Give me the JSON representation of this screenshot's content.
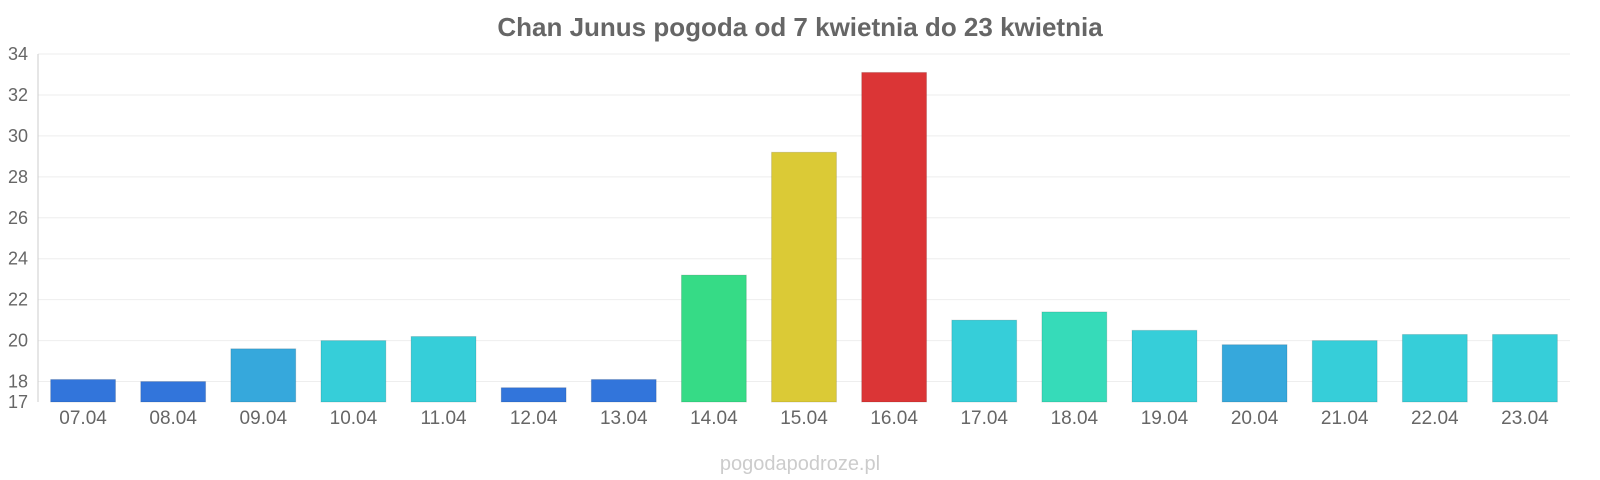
{
  "chart_data": {
    "type": "bar",
    "title": "Chan Junus pogoda od 7 kwietnia do 23 kwietnia",
    "categories": [
      "07.04",
      "08.04",
      "09.04",
      "10.04",
      "11.04",
      "12.04",
      "13.04",
      "14.04",
      "15.04",
      "16.04",
      "17.04",
      "18.04",
      "19.04",
      "20.04",
      "21.04",
      "22.04",
      "23.04"
    ],
    "values": [
      18.1,
      18.0,
      19.6,
      20.0,
      20.2,
      17.7,
      18.1,
      23.2,
      29.2,
      33.1,
      21.0,
      21.4,
      20.5,
      19.8,
      20.0,
      20.3,
      20.3
    ],
    "colors": [
      "#3275db",
      "#3275db",
      "#36a8dc",
      "#36ced9",
      "#36ced9",
      "#3275db",
      "#3275db",
      "#36db86",
      "#dbca36",
      "#db3536",
      "#36ced9",
      "#36dbb9",
      "#36ced9",
      "#36a8dc",
      "#36ced9",
      "#36ced9",
      "#36ced9"
    ],
    "yticks": [
      17,
      18,
      20,
      22,
      24,
      26,
      28,
      30,
      32,
      34
    ],
    "ylim": [
      17,
      34
    ],
    "xlabel": "",
    "ylabel": "",
    "grid": true,
    "legend": "none"
  },
  "watermark": "pogodapodroze.pl"
}
